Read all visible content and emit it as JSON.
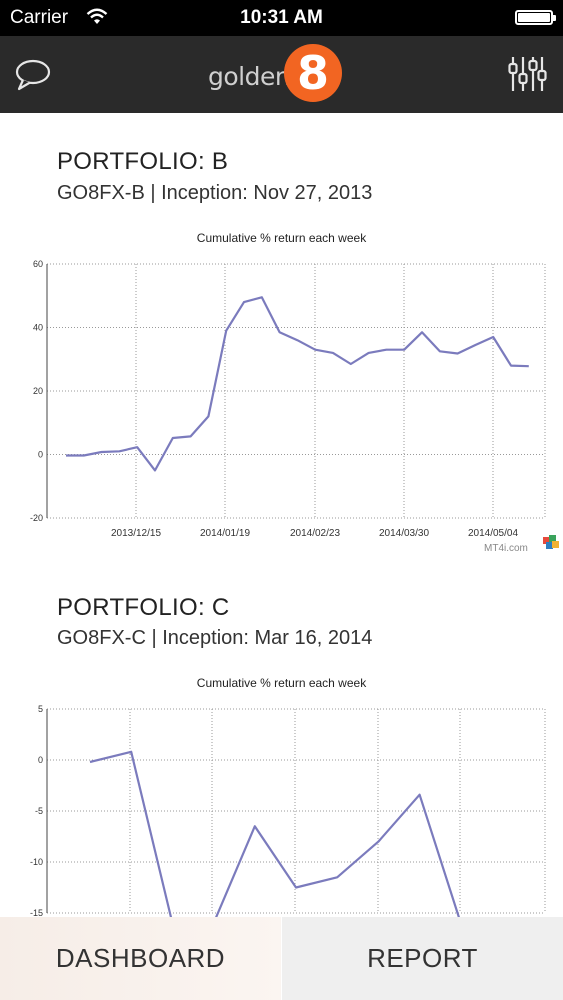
{
  "status_bar": {
    "carrier": "Carrier",
    "time": "10:31 AM"
  },
  "nav": {
    "logo_word": "golden",
    "logo_number": "8",
    "left_icon": "chat-bubble-icon",
    "right_icon": "sliders-icon",
    "accent": "#f26522"
  },
  "portfolios": [
    {
      "title": "PORTFOLIO: B",
      "subtitle": "GO8FX-B  |  Inception: Nov 27, 2013",
      "chart_data": {
        "type": "line",
        "title": "Cumulative % return each week",
        "ylim": [
          -20,
          60
        ],
        "yticks": [
          "60",
          "40",
          "20",
          "0",
          "-20"
        ],
        "xtick_labels": [
          "2013/12/15",
          "2014/01/19",
          "2014/02/23",
          "2014/03/30",
          "2014/05/04"
        ],
        "grid": true,
        "series": [
          {
            "color": "#7b7bbd",
            "values": [
              -0.3,
              -0.3,
              0.8,
              1.0,
              2.3,
              -5.0,
              5.2,
              5.7,
              12.0,
              39.0,
              48.0,
              49.5,
              38.5,
              36.0,
              33.0,
              32.0,
              28.5,
              32.0,
              33.0,
              33.0,
              38.5,
              32.5,
              31.8,
              34.5,
              37.0,
              28.0,
              27.8
            ]
          }
        ]
      },
      "watermark": "MT4i.com"
    },
    {
      "title": "PORTFOLIO: C",
      "subtitle": "GO8FX-C  |  Inception: Mar 16, 2014",
      "chart_data": {
        "type": "line",
        "title": "Cumulative % return each week",
        "ylim": [
          -15,
          5
        ],
        "yticks": [
          "5",
          "0",
          "-5",
          "-10",
          "-15"
        ],
        "grid": true,
        "series": [
          {
            "color": "#7b7bbd",
            "values": [
              -0.2,
              0.8,
              -16.0,
              -16.0,
              -6.5,
              -12.5,
              -11.5,
              -8.0,
              -3.4,
              -16.0
            ]
          }
        ]
      }
    }
  ],
  "tabs": {
    "dashboard": "DASHBOARD",
    "report": "REPORT"
  }
}
